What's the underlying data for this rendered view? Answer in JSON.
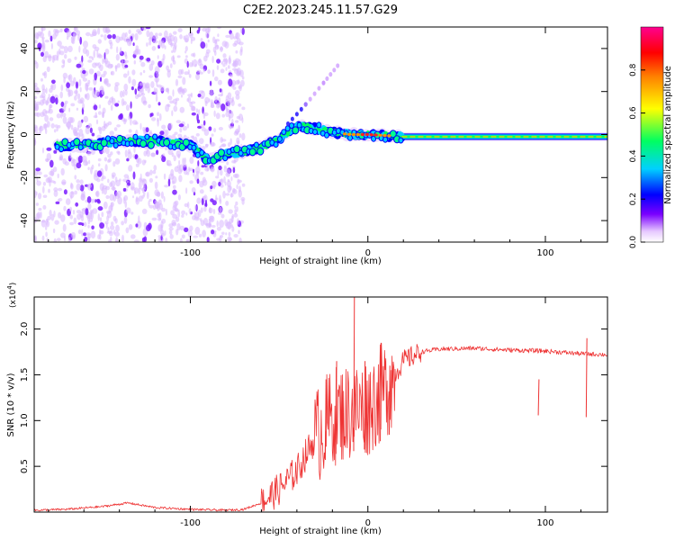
{
  "title": "C2E2.2023.245.11.57.G29",
  "chart_data": [
    {
      "type": "heatmap",
      "ylabel": "Frequency (Hz)",
      "xlabel": "Height of straight line (km)",
      "xlim": [
        -188,
        135
      ],
      "ylim": [
        -50,
        50
      ],
      "x_ticks": [
        -100,
        0,
        100
      ],
      "y_ticks": [
        -40,
        -20,
        0,
        20,
        40
      ],
      "colorbar": {
        "label": "Normalized spectral amplitude",
        "range": [
          0.0,
          1.0
        ],
        "ticks": [
          "0.0",
          "0.2",
          "0.4",
          "0.6",
          "0.8"
        ],
        "colors": [
          "#ffffff",
          "#e6c8ff",
          "#7a00ff",
          "#0000ff",
          "#00d0ff",
          "#00ff60",
          "#ffff00",
          "#ff8000",
          "#ff0000",
          "#ff0090"
        ]
      },
      "ridge": {
        "description_points_km_hz": [
          [
            -180,
            -5
          ],
          [
            -160,
            -5
          ],
          [
            -140,
            -3
          ],
          [
            -120,
            -3
          ],
          [
            -100,
            -5
          ],
          [
            -90,
            -12
          ],
          [
            -80,
            -9
          ],
          [
            -70,
            -8
          ],
          [
            -60,
            -6
          ],
          [
            -50,
            -2
          ],
          [
            -40,
            4
          ],
          [
            -30,
            3
          ],
          [
            -20,
            1
          ],
          [
            -10,
            0
          ],
          [
            0,
            0
          ],
          [
            20,
            -1
          ],
          [
            50,
            -1
          ],
          [
            80,
            -1
          ],
          [
            100,
            -1
          ],
          [
            135,
            -1
          ]
        ],
        "peak_region_km": [
          -5,
          5
        ],
        "branch_points_km_hz": [
          [
            -45,
            5
          ],
          [
            -35,
            14
          ],
          [
            -25,
            24
          ],
          [
            -17,
            32
          ]
        ]
      },
      "noise_region_km": [
        -188,
        -70
      ]
    },
    {
      "type": "line",
      "ylabel": "SNR (10 * v/v)",
      "xlabel": "Height of straight line (km)",
      "multiplier_label": "(x10",
      "multiplier_exp": "4",
      "multiplier_close": ")",
      "xlim": [
        -188,
        135
      ],
      "ylim": [
        0,
        2.35
      ],
      "x_ticks": [
        -100,
        0,
        100
      ],
      "y_ticks": [
        "0.5",
        "1.0",
        "1.5",
        "2.0"
      ],
      "color": "#ee3333",
      "series": [
        {
          "name": "SNR",
          "x": [
            -188,
            -170,
            -150,
            -135,
            -120,
            -100,
            -80,
            -70,
            -60,
            -50,
            -40,
            -30,
            -20,
            -10,
            0,
            10,
            20,
            30,
            40,
            60,
            80,
            100,
            120,
            135
          ],
          "y": [
            0.02,
            0.03,
            0.06,
            0.1,
            0.05,
            0.03,
            0.02,
            0.03,
            0.1,
            0.25,
            0.45,
            0.8,
            1.05,
            1.1,
            1.15,
            1.35,
            1.65,
            1.75,
            1.78,
            1.79,
            1.77,
            1.76,
            1.73,
            1.72
          ]
        }
      ],
      "spikes": [
        [
          -24,
          1.45
        ],
        [
          -18,
          1.65
        ],
        [
          -8,
          2.35
        ],
        [
          -2,
          1.65
        ],
        [
          7,
          1.85
        ],
        [
          12,
          1.6
        ],
        [
          96,
          1.45
        ],
        [
          123,
          1.9
        ]
      ]
    }
  ]
}
